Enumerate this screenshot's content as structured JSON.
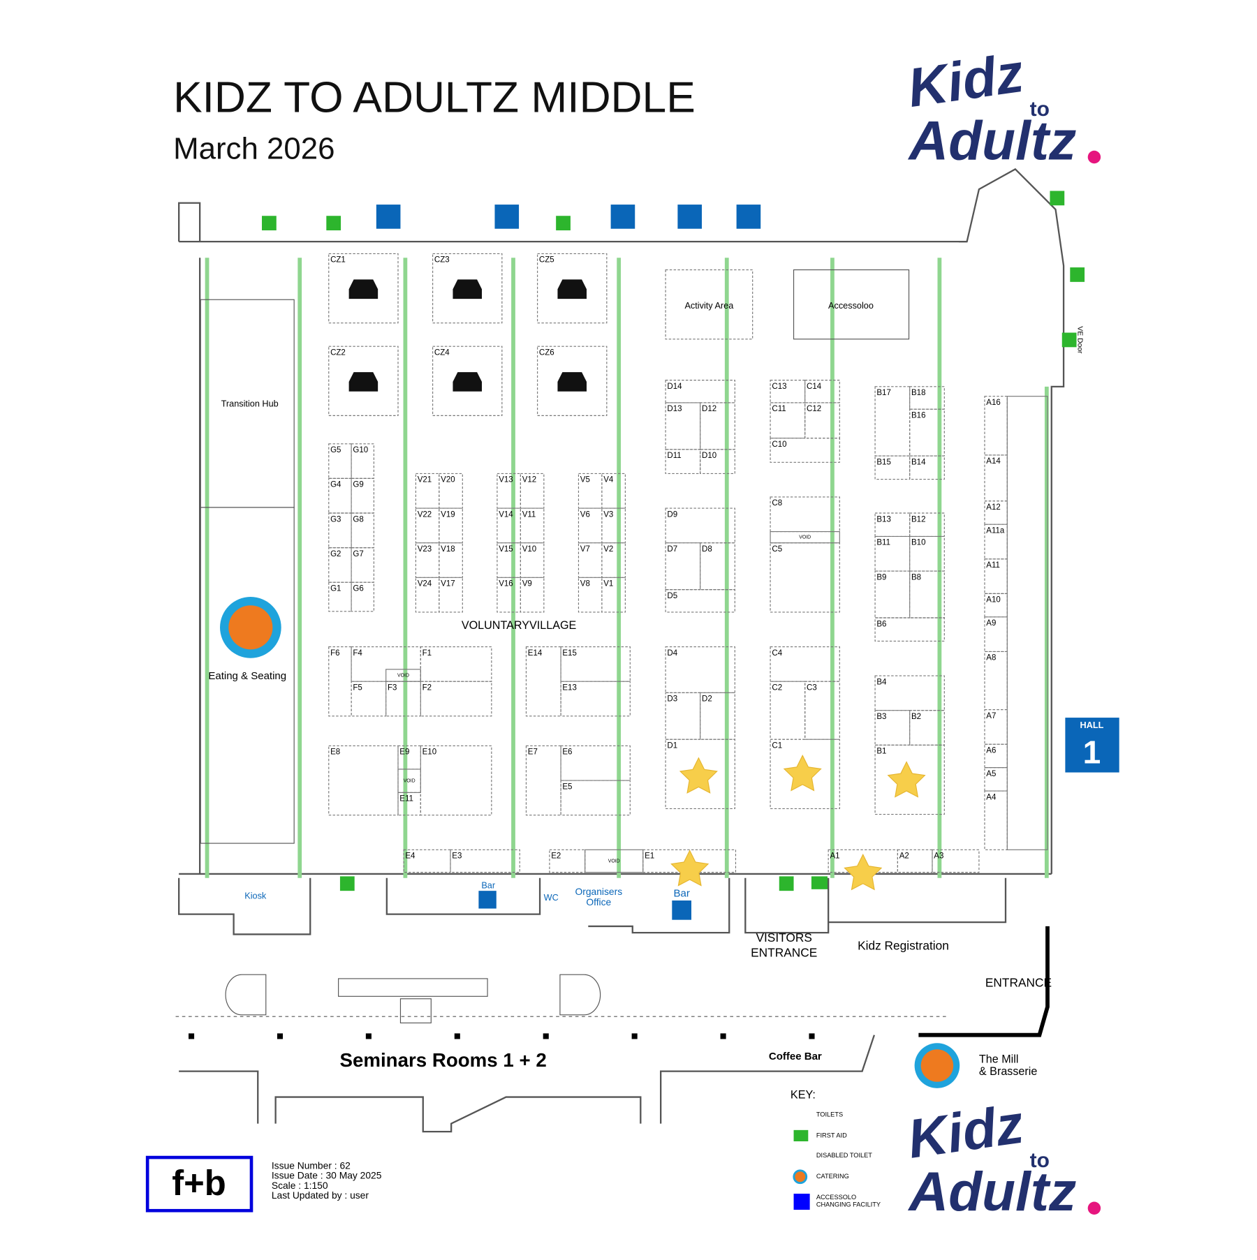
{
  "header": {
    "title": "KIDZ TO ADULTZ MIDDLE",
    "subtitle": "March 2026"
  },
  "logo": {
    "kidz": "Kidz",
    "to": "to",
    "adultz": "Adultz"
  },
  "booths": [
    "CZ1",
    "CZ2",
    "CZ3",
    "CZ4",
    "CZ5",
    "CZ6",
    "D14",
    "D13",
    "D12",
    "D11",
    "D10",
    "C13",
    "C14",
    "C11",
    "C12",
    "C10",
    "B17",
    "B18",
    "B16",
    "B15",
    "B14",
    "A16",
    "A14",
    "A12",
    "A11a",
    "A11",
    "A10",
    "A9",
    "A8",
    "A7",
    "A6",
    "A5",
    "A4",
    "G5",
    "G10",
    "G4",
    "G9",
    "G3",
    "G8",
    "G2",
    "G7",
    "G1",
    "G6",
    "V21",
    "V20",
    "V22",
    "V19",
    "V23",
    "V18",
    "V24",
    "V17",
    "V13",
    "V12",
    "V14",
    "V11",
    "V15",
    "V10",
    "V16",
    "V9",
    "V5",
    "V4",
    "V6",
    "V3",
    "V7",
    "V2",
    "V8",
    "V1",
    "D9",
    "D7",
    "D8",
    "D5",
    "C8",
    "C5",
    "B13",
    "B12",
    "B11",
    "B10",
    "B9",
    "B8",
    "B6",
    "F6",
    "F4",
    "F1",
    "F5",
    "F3",
    "F2",
    "E14",
    "E15",
    "E13",
    "D4",
    "D3",
    "D2",
    "D1",
    "C4",
    "C2",
    "C3",
    "C1",
    "B4",
    "B3",
    "B2",
    "B1",
    "E8",
    "E9",
    "E11",
    "E10",
    "E7",
    "E6",
    "E5",
    "E4",
    "E3",
    "E2",
    "E1",
    "A1",
    "A2",
    "A3"
  ],
  "voids": [
    "VOID",
    "VOID",
    "VOID",
    "VOID"
  ],
  "areas": [
    "Transition Hub",
    "Eating & Seating",
    "Kiosk",
    "Bar",
    "WC",
    "Organisers",
    "Office",
    "Bar",
    "Activity Area",
    "Accessoloo",
    "VOLUNTARYVILLAGE",
    "VISITORS",
    "ENTRANCE",
    "Kidz Registration",
    "ENTRANCE",
    "Seminars Rooms 1 + 2",
    "Coffee Bar",
    "The Mill",
    "& Brasserie",
    "VE Door"
  ],
  "hall": {
    "label": "HALL",
    "number": "1"
  },
  "key": {
    "title": "KEY:",
    "items": [
      "TOILETS",
      "FIRST AID",
      "DISABLED TOILET",
      "CATERING",
      "ACCESSOLO",
      "CHANGING FACILITY"
    ]
  },
  "issue": [
    "Issue Number : 62",
    "Issue Date : 30 May 2025",
    "Scale : 1:150",
    "Last Updated by : user"
  ],
  "fb": "f+b"
}
